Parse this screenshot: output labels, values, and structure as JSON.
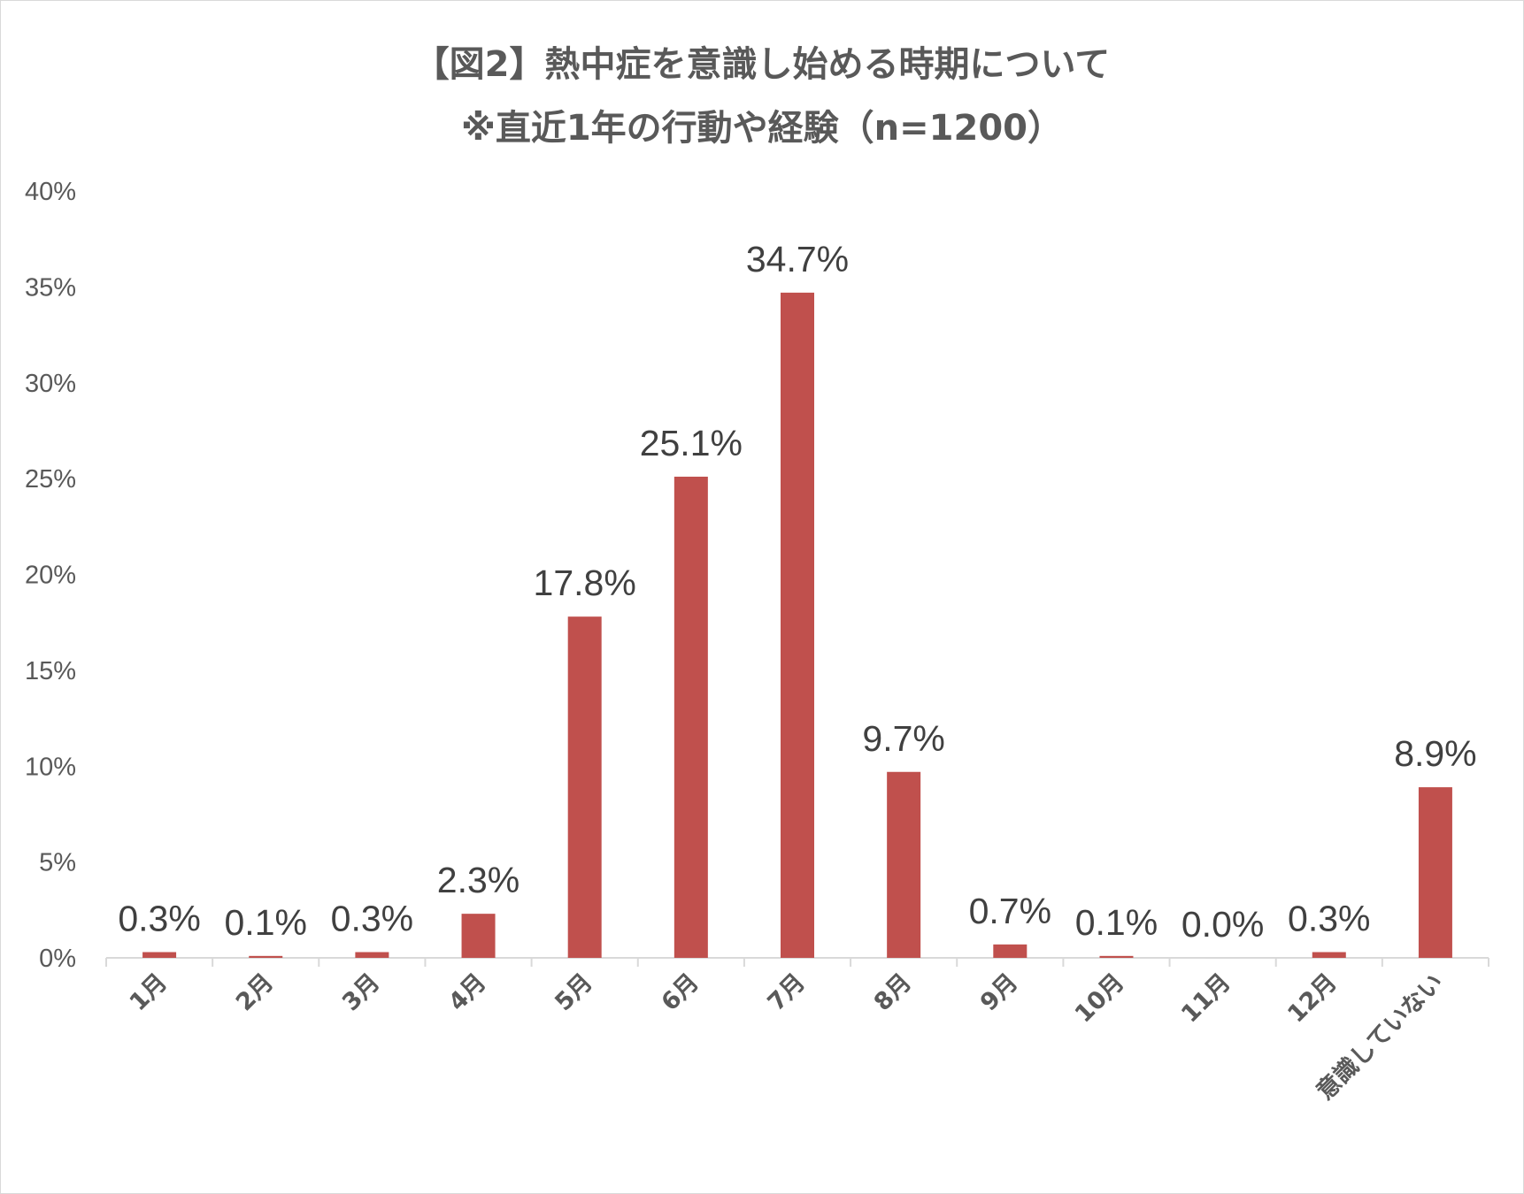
{
  "chart_data": {
    "type": "bar",
    "title": "【図2】熱中症を意識し始める時期について",
    "subtitle": "※直近1年の行動や経験（n=1200）",
    "xlabel": "",
    "ylabel": "",
    "ylim": [
      0,
      40
    ],
    "yticks": [
      "0%",
      "5%",
      "10%",
      "15%",
      "20%",
      "25%",
      "30%",
      "35%",
      "40%"
    ],
    "grid": false,
    "categories": [
      "1月",
      "2月",
      "3月",
      "4月",
      "5月",
      "6月",
      "7月",
      "8月",
      "9月",
      "10月",
      "11月",
      "12月",
      "意識していない"
    ],
    "values": [
      0.3,
      0.1,
      0.3,
      2.3,
      17.8,
      25.1,
      34.7,
      9.7,
      0.7,
      0.1,
      0.0,
      0.3,
      8.9
    ],
    "data_labels": [
      "0.3%",
      "0.1%",
      "0.3%",
      "2.3%",
      "17.8%",
      "25.1%",
      "34.7%",
      "9.7%",
      "0.7%",
      "0.1%",
      "0.0%",
      "0.3%",
      "8.9%"
    ],
    "bar_color": "#c0504d",
    "axis_color": "#d9d9d9",
    "text_color": "#595959"
  }
}
